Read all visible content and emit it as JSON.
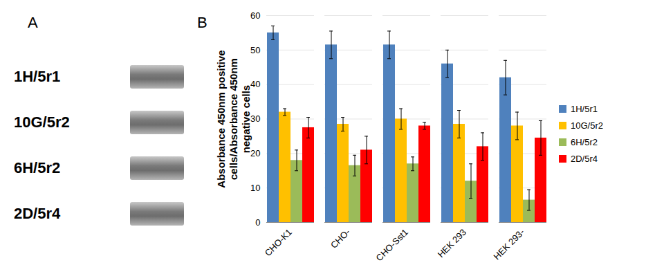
{
  "chart_data": {
    "type": "bar",
    "panel_label": "B",
    "y_label": "Absorbance 450nm positive cells/Absorbance 450nm negative cells",
    "categories": [
      "CHO-K1",
      "CHO-",
      "CHO-Sst1",
      "HEK 293",
      "HEK 293-"
    ],
    "series": [
      {
        "name": "1H/5r1",
        "color": "#4f81bd",
        "values": [
          55,
          51.5,
          51.5,
          46,
          42
        ],
        "errors": [
          2,
          4,
          4,
          4,
          5
        ]
      },
      {
        "name": "10G/5r2",
        "color": "#ffc000",
        "values": [
          32,
          28.5,
          30,
          28.5,
          28
        ],
        "errors": [
          1,
          2,
          3,
          4,
          4
        ]
      },
      {
        "name": "6H/5r2",
        "color": "#9bbb59",
        "values": [
          18,
          16.5,
          17,
          12,
          6.5
        ],
        "errors": [
          3,
          3,
          2,
          5,
          3
        ]
      },
      {
        "name": "2D/5r4",
        "color": "#ff0000",
        "values": [
          27.5,
          21,
          28,
          22,
          24.5
        ],
        "errors": [
          3,
          4,
          1,
          4,
          5
        ]
      }
    ],
    "ylim": [
      0,
      60
    ],
    "yticks": [
      0,
      10,
      20,
      30,
      40,
      50,
      60
    ],
    "grid": true,
    "legend": "right"
  },
  "blot": {
    "panel_label": "A",
    "lanes": [
      "1H/5r1",
      "10G/5r2",
      "6H/5r2",
      "2D/5r4"
    ]
  }
}
